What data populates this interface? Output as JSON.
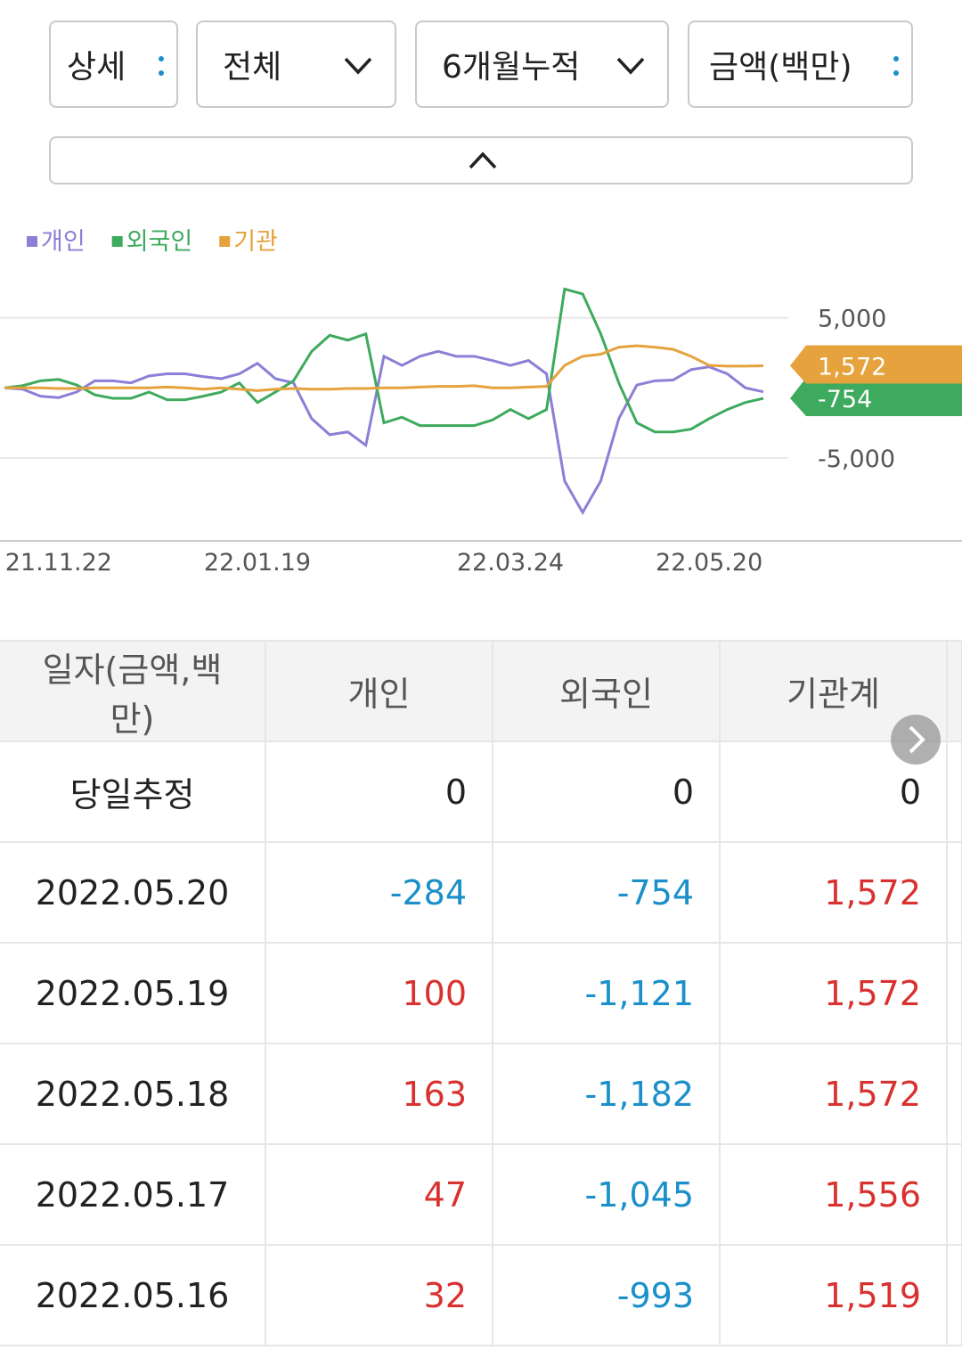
{
  "controls": {
    "buttons": [
      "상세",
      "전체",
      "6개월누적",
      "금액(백만)"
    ]
  },
  "chart_data": {
    "type": "line",
    "categories": [
      null,
      null,
      null,
      "21.11.22",
      null,
      null,
      null,
      null,
      null,
      null,
      null,
      null,
      null,
      null,
      "22.01.19",
      null,
      null,
      null,
      null,
      null,
      null,
      null,
      null,
      null,
      null,
      null,
      null,
      null,
      "22.03.24",
      null,
      null,
      null,
      null,
      null,
      null,
      null,
      null,
      null,
      null,
      "22.05.20",
      null,
      null,
      null
    ],
    "series": [
      {
        "name": "개인",
        "color": "#8b7fd6",
        "values": [
          0,
          -100,
          -600,
          -700,
          -300,
          500,
          500,
          350,
          850,
          1000,
          1000,
          800,
          650,
          1000,
          1750,
          650,
          350,
          -2200,
          -3350,
          -3150,
          -4100,
          2250,
          1600,
          2250,
          2600,
          2250,
          2250,
          1950,
          1600,
          1950,
          1000,
          -6650,
          -8900,
          -6650,
          -2200,
          200,
          500,
          550,
          1300,
          1500,
          1000,
          0,
          -284
        ]
      },
      {
        "name": "외국인",
        "color": "#3eaa5d",
        "values": [
          0,
          150,
          500,
          600,
          200,
          -500,
          -750,
          -750,
          -300,
          -850,
          -850,
          -600,
          -300,
          350,
          -1050,
          -300,
          500,
          2600,
          3750,
          3400,
          3850,
          -2500,
          -2100,
          -2700,
          -2700,
          -2700,
          -2700,
          -2300,
          -1550,
          -2200,
          -1550,
          7050,
          6700,
          3850,
          350,
          -2500,
          -3150,
          -3150,
          -2950,
          -2200,
          -1550,
          -1050,
          -754
        ],
        "end_label": "-754"
      },
      {
        "name": "기관",
        "color": "#e6a23c",
        "values": [
          0,
          0,
          0,
          -50,
          -50,
          0,
          0,
          0,
          0,
          50,
          0,
          -100,
          0,
          -100,
          -200,
          -100,
          -50,
          -100,
          -100,
          -50,
          -50,
          0,
          0,
          50,
          100,
          100,
          150,
          0,
          0,
          50,
          100,
          1600,
          2250,
          2400,
          2900,
          3000,
          2900,
          2750,
          2250,
          1600,
          1550,
          1550,
          1572
        ],
        "end_label": "1,572"
      }
    ],
    "ylim": [
      -10800,
      8600
    ],
    "yticks": [
      {
        "value": 5000,
        "label": "5,000"
      },
      {
        "value": -5000,
        "label": "-5,000"
      }
    ],
    "grid": true
  },
  "table": {
    "header": [
      "일자(금액,백만)",
      "개인",
      "외국인",
      "기관계"
    ],
    "rows": [
      [
        "당일추정",
        "0",
        "0",
        "0"
      ],
      [
        "2022.05.20",
        "-284",
        "-754",
        "1,572"
      ],
      [
        "2022.05.19",
        "100",
        "-1,121",
        "1,572"
      ],
      [
        "2022.05.18",
        "163",
        "-1,182",
        "1,572"
      ],
      [
        "2022.05.17",
        "47",
        "-1,045",
        "1,556"
      ],
      [
        "2022.05.16",
        "32",
        "-993",
        "1,519"
      ]
    ]
  }
}
